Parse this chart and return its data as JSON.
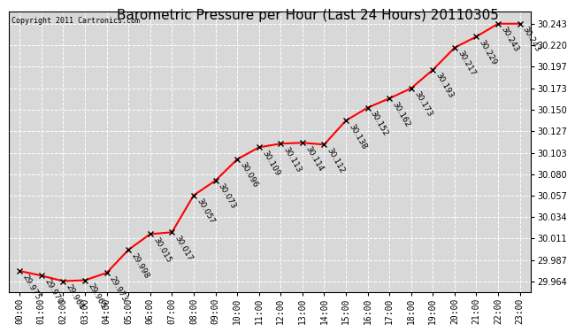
{
  "title": "Barometric Pressure per Hour (Last 24 Hours) 20110305",
  "copyright": "Copyright 2011 Cartronics.com",
  "hours": [
    "00:00",
    "01:00",
    "02:00",
    "03:00",
    "04:00",
    "05:00",
    "06:00",
    "07:00",
    "08:00",
    "09:00",
    "10:00",
    "11:00",
    "12:00",
    "13:00",
    "14:00",
    "15:00",
    "16:00",
    "17:00",
    "18:00",
    "19:00",
    "20:00",
    "21:00",
    "22:00",
    "23:00"
  ],
  "values": [
    29.975,
    29.97,
    29.964,
    29.965,
    29.973,
    29.998,
    30.015,
    30.017,
    30.057,
    30.073,
    30.096,
    30.109,
    30.113,
    30.114,
    30.112,
    30.138,
    30.152,
    30.162,
    30.173,
    30.193,
    30.217,
    30.229,
    30.243,
    30.243
  ],
  "line_color": "#ff0000",
  "marker_color": "#000000",
  "bg_color": "#ffffff",
  "plot_bg_color": "#d8d8d8",
  "grid_color": "#ffffff",
  "title_fontsize": 11,
  "copyright_fontsize": 6,
  "label_fontsize": 6.5,
  "tick_fontsize": 7,
  "ytick_values": [
    29.964,
    29.987,
    30.011,
    30.034,
    30.057,
    30.08,
    30.103,
    30.127,
    30.15,
    30.173,
    30.197,
    30.22,
    30.243
  ],
  "ylim_min": 29.952,
  "ylim_max": 30.256
}
